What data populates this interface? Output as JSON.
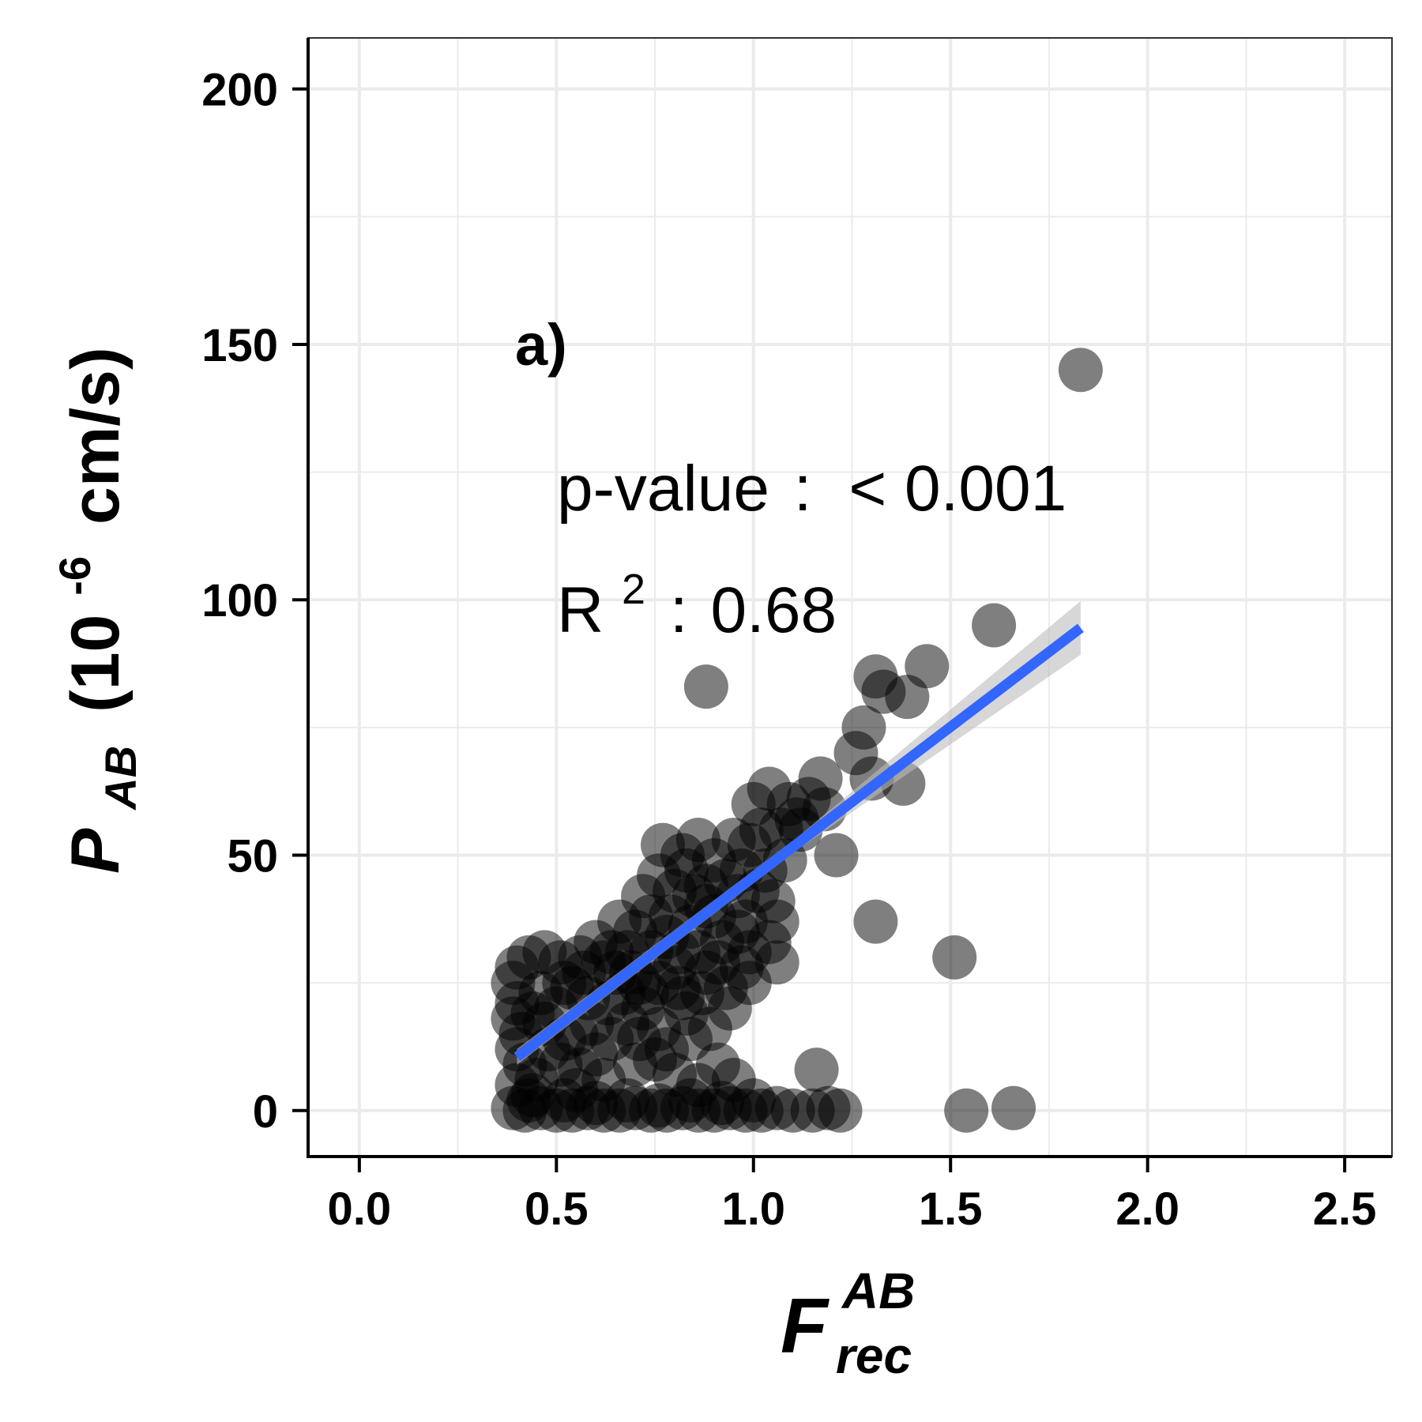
{
  "chart_data": {
    "type": "scatter",
    "panel_label": "a)",
    "xlabel": {
      "main": "F",
      "superscript": "AB",
      "subscript": "rec"
    },
    "ylabel": {
      "main": "P",
      "subscript": "AB",
      "unit_open": "(10",
      "unit_exponent": "-6",
      "unit_close": "cm/s)"
    },
    "xlim": [
      -0.13,
      2.62
    ],
    "ylim": [
      -9,
      210
    ],
    "x_ticks": [
      {
        "value": 0.0,
        "label": "0.0"
      },
      {
        "value": 0.5,
        "label": "0.5"
      },
      {
        "value": 1.0,
        "label": "1.0"
      },
      {
        "value": 1.5,
        "label": "1.5"
      },
      {
        "value": 2.0,
        "label": "2.0"
      },
      {
        "value": 2.5,
        "label": "2.5"
      }
    ],
    "y_ticks": [
      {
        "value": 0,
        "label": "0"
      },
      {
        "value": 50,
        "label": "50"
      },
      {
        "value": 100,
        "label": "100"
      },
      {
        "value": 150,
        "label": "150"
      },
      {
        "value": 200,
        "label": "200"
      }
    ],
    "grid": true,
    "point_color": "#000000",
    "point_opacity": 0.5,
    "fit_line": {
      "x": [
        0.4,
        1.83
      ],
      "y": [
        10.5,
        94.5
      ],
      "color": "#3366ff",
      "ci_color": "#bdbdbd"
    },
    "annotations": {
      "p_value": {
        "label": "p-value",
        "sep": ":",
        "value": "< 0.001"
      },
      "r_squared": {
        "label": "R",
        "exponent": "2",
        "sep": ":",
        "value": "0.68"
      }
    },
    "points": [
      [
        1.83,
        145
      ],
      [
        1.61,
        95
      ],
      [
        0.88,
        83
      ],
      [
        1.31,
        85
      ],
      [
        1.33,
        82
      ],
      [
        1.44,
        87
      ],
      [
        1.39,
        81
      ],
      [
        1.28,
        75
      ],
      [
        1.26,
        70
      ],
      [
        1.38,
        64
      ],
      [
        1.3,
        65
      ],
      [
        1.17,
        65
      ],
      [
        1.18,
        59
      ],
      [
        1.21,
        50
      ],
      [
        1.04,
        63
      ],
      [
        1.0,
        60
      ],
      [
        1.09,
        60
      ],
      [
        1.11,
        57
      ],
      [
        1.07,
        55
      ],
      [
        0.95,
        53
      ],
      [
        0.86,
        53
      ],
      [
        0.77,
        52
      ],
      [
        0.82,
        50
      ],
      [
        0.9,
        49
      ],
      [
        0.97,
        47
      ],
      [
        1.03,
        47
      ],
      [
        1.08,
        49
      ],
      [
        0.76,
        46
      ],
      [
        0.72,
        42
      ],
      [
        0.8,
        43
      ],
      [
        0.88,
        40
      ],
      [
        0.96,
        42
      ],
      [
        0.98,
        37
      ],
      [
        1.05,
        41
      ],
      [
        1.06,
        37
      ],
      [
        1.31,
        37
      ],
      [
        1.51,
        30
      ],
      [
        1.06,
        29
      ],
      [
        0.97,
        28
      ],
      [
        0.99,
        25
      ],
      [
        0.93,
        24
      ],
      [
        0.88,
        27
      ],
      [
        0.82,
        22
      ],
      [
        0.76,
        25
      ],
      [
        0.71,
        25
      ],
      [
        0.65,
        27
      ],
      [
        0.6,
        33
      ],
      [
        0.56,
        30
      ],
      [
        0.51,
        29
      ],
      [
        0.47,
        31
      ],
      [
        0.43,
        30
      ],
      [
        0.4,
        28
      ],
      [
        0.39,
        25
      ],
      [
        0.4,
        21
      ],
      [
        0.39,
        18
      ],
      [
        0.41,
        15
      ],
      [
        0.4,
        12
      ],
      [
        0.42,
        9
      ],
      [
        0.4,
        5
      ],
      [
        0.43,
        2
      ],
      [
        0.46,
        23
      ],
      [
        0.5,
        20
      ],
      [
        0.54,
        24
      ],
      [
        0.58,
        22
      ],
      [
        0.62,
        29
      ],
      [
        0.68,
        31
      ],
      [
        0.66,
        37
      ],
      [
        0.7,
        35
      ],
      [
        0.74,
        38
      ],
      [
        0.78,
        34
      ],
      [
        0.84,
        36
      ],
      [
        0.92,
        33
      ],
      [
        0.86,
        31
      ],
      [
        0.8,
        28
      ],
      [
        0.72,
        20
      ],
      [
        0.68,
        17
      ],
      [
        0.64,
        14
      ],
      [
        0.6,
        11
      ],
      [
        0.56,
        8
      ],
      [
        0.52,
        14
      ],
      [
        0.48,
        12
      ],
      [
        0.45,
        6
      ],
      [
        0.55,
        4
      ],
      [
        0.62,
        6
      ],
      [
        0.7,
        9
      ],
      [
        0.78,
        12
      ],
      [
        0.84,
        14
      ],
      [
        0.89,
        16
      ],
      [
        0.8,
        7
      ],
      [
        0.86,
        5
      ],
      [
        0.91,
        9
      ],
      [
        0.95,
        6
      ],
      [
        0.83,
        19
      ],
      [
        0.76,
        16
      ],
      [
        0.73,
        23
      ],
      [
        1.16,
        8
      ],
      [
        1.54,
        0
      ],
      [
        1.66,
        0.5
      ],
      [
        1.22,
        0
      ],
      [
        1.19,
        0.5
      ],
      [
        1.15,
        0
      ],
      [
        1.1,
        0
      ],
      [
        1.06,
        0.5
      ],
      [
        1.02,
        0
      ],
      [
        0.98,
        0
      ],
      [
        0.94,
        0.5
      ],
      [
        0.9,
        0
      ],
      [
        0.86,
        0
      ],
      [
        0.82,
        0.5
      ],
      [
        0.78,
        0
      ],
      [
        0.74,
        0
      ],
      [
        0.7,
        0.5
      ],
      [
        0.66,
        0
      ],
      [
        0.62,
        0
      ],
      [
        0.58,
        0.5
      ],
      [
        0.54,
        0
      ],
      [
        0.5,
        0
      ],
      [
        0.46,
        0.5
      ],
      [
        0.42,
        0
      ],
      [
        0.39,
        0.5
      ],
      [
        0.44,
        3
      ],
      [
        0.52,
        2
      ],
      [
        0.6,
        1.5
      ],
      [
        0.68,
        2
      ],
      [
        0.76,
        1
      ],
      [
        0.84,
        2
      ],
      [
        0.92,
        1.5
      ],
      [
        1.0,
        2
      ],
      [
        0.88,
        44
      ],
      [
        0.93,
        45
      ],
      [
        0.99,
        52
      ],
      [
        1.02,
        55
      ],
      [
        0.9,
        38
      ],
      [
        0.85,
        42
      ],
      [
        0.79,
        38
      ],
      [
        0.74,
        31
      ],
      [
        0.69,
        27
      ],
      [
        0.63,
        21
      ],
      [
        0.59,
        17
      ],
      [
        0.55,
        15
      ],
      [
        0.51,
        9
      ],
      [
        0.47,
        17
      ],
      [
        0.44,
        19
      ],
      [
        0.52,
        25
      ],
      [
        0.57,
        27
      ],
      [
        0.64,
        31
      ],
      [
        0.67,
        23
      ],
      [
        0.71,
        14
      ],
      [
        0.75,
        10
      ],
      [
        0.81,
        24
      ],
      [
        0.87,
        23
      ],
      [
        0.94,
        20
      ],
      [
        0.96,
        35
      ],
      [
        0.91,
        29
      ],
      [
        0.99,
        31
      ],
      [
        1.04,
        33
      ],
      [
        1.01,
        43
      ],
      [
        1.12,
        55
      ],
      [
        1.14,
        61
      ],
      [
        0.83,
        47
      ],
      [
        0.81,
        31
      ]
    ]
  }
}
